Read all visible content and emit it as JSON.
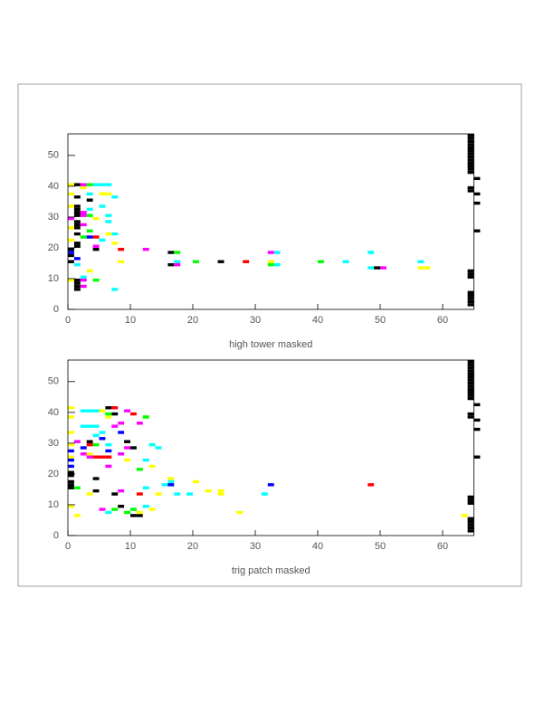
{
  "chart_data": [
    {
      "type": "cells",
      "x_label": "high tower masked",
      "xlim": [
        0,
        65
      ],
      "ylim": [
        0,
        57
      ],
      "xticks": [
        0,
        10,
        20,
        30,
        40,
        50,
        60
      ],
      "yticks": [
        0,
        10,
        20,
        30,
        40,
        50
      ],
      "series": [
        {
          "color": "#000000",
          "x": [
            1,
            1,
            1,
            1,
            1,
            1,
            1,
            1,
            1,
            1,
            1,
            1,
            0,
            0,
            0,
            1,
            1,
            1,
            1,
            3,
            4,
            16,
            16,
            24,
            49,
            64,
            64,
            64,
            64,
            64,
            64,
            64,
            64,
            64,
            64,
            64,
            64,
            64,
            64,
            64,
            64,
            64,
            64,
            64,
            64,
            64,
            64,
            64,
            65,
            65,
            65,
            65
          ],
          "y": [
            40,
            36,
            33,
            32,
            31,
            30,
            28,
            27,
            26,
            24,
            21,
            20,
            19,
            17,
            15,
            9,
            8,
            7,
            6,
            35,
            19,
            18,
            14,
            15,
            13,
            44,
            45,
            46,
            47,
            48,
            49,
            50,
            51,
            52,
            53,
            54,
            55,
            56,
            38,
            39,
            10,
            11,
            12,
            1,
            2,
            3,
            4,
            5,
            42,
            37,
            34,
            25
          ]
        },
        {
          "color": "#ffff00",
          "x": [
            0,
            0,
            0,
            0,
            0,
            0,
            2,
            5,
            6,
            4,
            6,
            7,
            8,
            32,
            56,
            57,
            3
          ],
          "y": [
            40,
            37,
            33,
            26,
            22,
            9,
            39,
            37,
            37,
            29,
            24,
            21,
            15,
            15,
            13,
            13,
            12
          ]
        },
        {
          "color": "#00ffff",
          "x": [
            4,
            5,
            6,
            3,
            7,
            3,
            5,
            6,
            6,
            7,
            5,
            1,
            7,
            17,
            33,
            33,
            44,
            48,
            48,
            56,
            2
          ],
          "y": [
            40,
            40,
            40,
            37,
            36,
            32,
            33,
            30,
            28,
            24,
            22,
            14,
            6,
            15,
            18,
            14,
            15,
            18,
            13,
            15,
            10
          ]
        },
        {
          "color": "#ff00ff",
          "x": [
            2,
            0,
            2,
            2,
            2,
            2,
            2,
            12,
            17,
            32,
            50,
            4
          ],
          "y": [
            40,
            29,
            31,
            30,
            27,
            9,
            7,
            19,
            14,
            18,
            13,
            20
          ]
        },
        {
          "color": "#00ff00",
          "x": [
            3,
            3,
            3,
            2,
            17,
            20,
            32,
            40,
            4
          ],
          "y": [
            40,
            30,
            25,
            23,
            18,
            15,
            14,
            15,
            9
          ]
        },
        {
          "color": "#ff0000",
          "x": [
            8,
            28,
            4
          ],
          "y": [
            19,
            15,
            23
          ]
        },
        {
          "color": "#0000ff",
          "x": [
            0,
            3,
            1
          ],
          "y": [
            18,
            23,
            16
          ]
        }
      ]
    },
    {
      "type": "cells",
      "x_label": "trig patch masked",
      "xlim": [
        0,
        65
      ],
      "ylim": [
        0,
        57
      ],
      "xticks": [
        0,
        10,
        20,
        30,
        40,
        50,
        60
      ],
      "yticks": [
        0,
        10,
        20,
        30,
        40,
        50
      ],
      "series": [
        {
          "color": "#000000",
          "x": [
            0,
            0,
            0,
            0,
            0,
            4,
            4,
            7,
            6,
            10,
            9,
            10,
            11,
            8,
            7,
            3,
            64,
            64,
            64,
            64,
            64,
            64,
            64,
            64,
            64,
            64,
            64,
            64,
            64,
            64,
            64,
            64,
            64,
            64,
            64,
            64,
            64,
            64,
            64,
            65,
            65,
            65,
            65
          ],
          "y": [
            20,
            19,
            17,
            16,
            15,
            18,
            14,
            13,
            41,
            28,
            30,
            6,
            6,
            9,
            39,
            30,
            44,
            45,
            46,
            47,
            48,
            49,
            50,
            51,
            52,
            53,
            54,
            55,
            56,
            38,
            39,
            10,
            11,
            12,
            1,
            2,
            3,
            4,
            5,
            42,
            37,
            34,
            25
          ]
        },
        {
          "color": "#ffff00",
          "x": [
            0,
            0,
            0,
            0,
            0,
            0,
            1,
            5,
            3,
            3,
            12,
            13,
            13,
            14,
            16,
            20,
            22,
            24,
            24,
            27,
            63,
            11,
            13,
            6,
            9
          ],
          "y": [
            41,
            38,
            33,
            29,
            25,
            9,
            6,
            40,
            26,
            13,
            38,
            22,
            29,
            13,
            18,
            17,
            14,
            14,
            13,
            7,
            6,
            7,
            8,
            38,
            24
          ]
        },
        {
          "color": "#00ffff",
          "x": [
            2,
            3,
            4,
            2,
            3,
            4,
            5,
            6,
            8,
            12,
            13,
            14,
            16,
            17,
            19,
            15,
            31,
            4,
            10,
            12,
            12,
            6
          ],
          "y": [
            40,
            40,
            40,
            35,
            35,
            35,
            33,
            29,
            26,
            24,
            29,
            28,
            17,
            13,
            13,
            16,
            13,
            32,
            8,
            9,
            15,
            7
          ]
        },
        {
          "color": "#ff00ff",
          "x": [
            1,
            2,
            3,
            7,
            8,
            9,
            8,
            5,
            11,
            6,
            8,
            9
          ],
          "y": [
            30,
            26,
            25,
            35,
            26,
            28,
            14,
            8,
            36,
            22,
            36,
            40
          ]
        },
        {
          "color": "#00ff00",
          "x": [
            1,
            7,
            9,
            10,
            11,
            6,
            4,
            12
          ],
          "y": [
            15,
            8,
            7,
            8,
            21,
            39,
            29,
            38
          ]
        },
        {
          "color": "#ff0000",
          "x": [
            7,
            4,
            5,
            6,
            3,
            11,
            48,
            10
          ],
          "y": [
            41,
            25,
            25,
            25,
            29,
            13,
            16,
            39
          ]
        },
        {
          "color": "#0000ff",
          "x": [
            0,
            0,
            0,
            16,
            32,
            5,
            6,
            8,
            2
          ],
          "y": [
            27,
            24,
            22,
            16,
            16,
            31,
            27,
            33,
            28
          ]
        }
      ]
    }
  ]
}
